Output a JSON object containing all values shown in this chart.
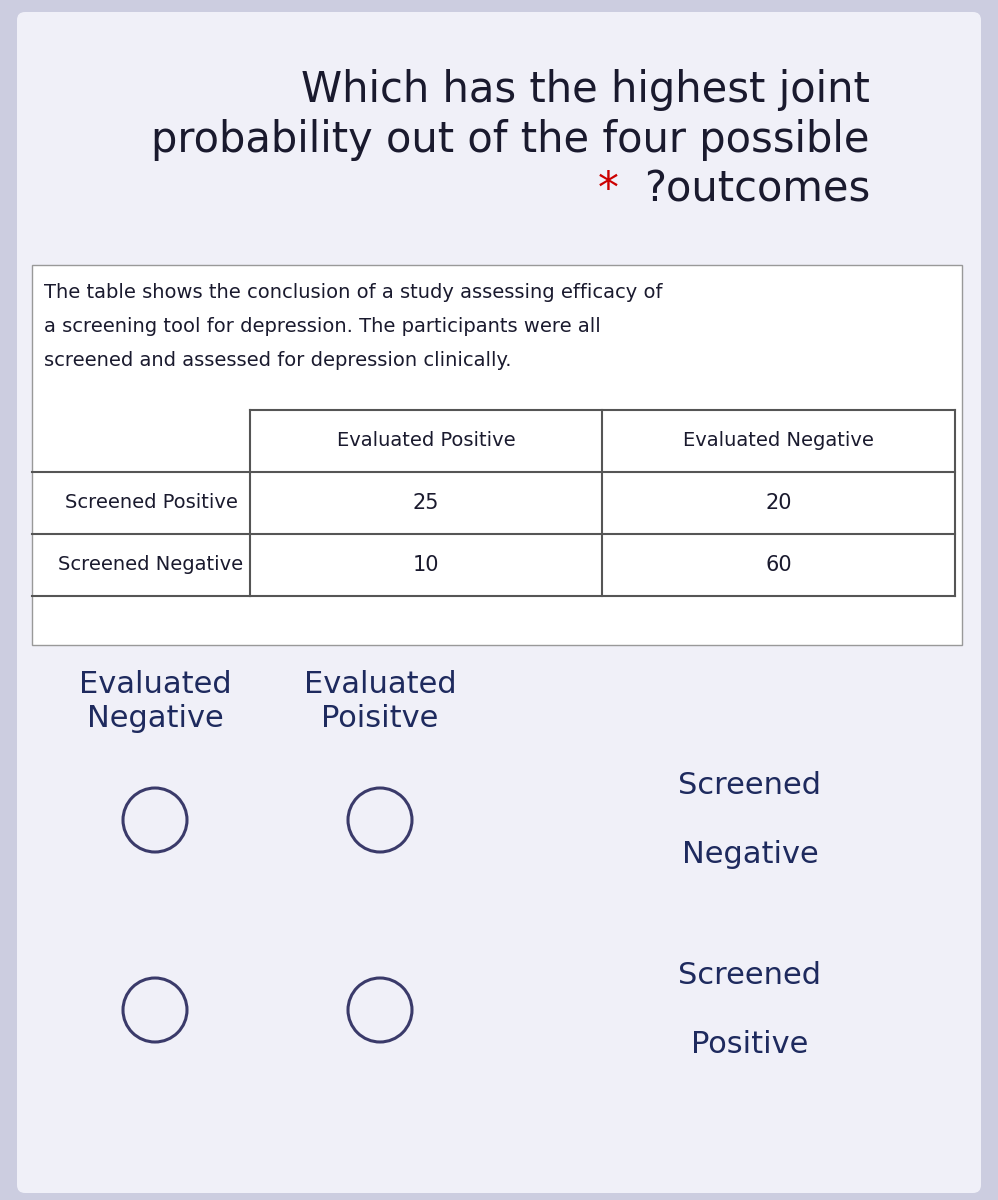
{
  "bg_color": "#cccde0",
  "card_color": "#f0f0f8",
  "title_line1": "Which has the highest joint",
  "title_line2": "probability out of the four possible",
  "title_line3_text": "?outcomes",
  "title_color": "#1a1a2e",
  "star_color": "#cc0000",
  "desc_line1": "The table shows the conclusion of a study assessing efficacy of",
  "desc_line2": "a screening tool for depression. The participants were all",
  "desc_line3": "screened and assessed for depression clinically.",
  "desc_color": "#1a1a2e",
  "table_header_col1": "Evaluated Positive",
  "table_header_col2": "Evaluated Negative",
  "table_row1_label": "Screened Positive",
  "table_row1_val1": "25",
  "table_row1_val2": "20",
  "table_row2_label": "Screened Negative",
  "table_row2_val1": "10",
  "table_row2_val2": "60",
  "table_text_color": "#1a1a2e",
  "option_col1_line1": "Evaluated",
  "option_col1_line2": "Negative",
  "option_col2_line1": "Evaluated",
  "option_col2_line2": "Poisitve",
  "option_row1_line1": "Screened",
  "option_row1_line2": "Negative",
  "option_row2_line1": "Screened",
  "option_row2_line2": "Positive",
  "option_label_color": "#1e2a5e",
  "circle_edge_color": "#3a3a6a",
  "circle_lw": 2.0
}
